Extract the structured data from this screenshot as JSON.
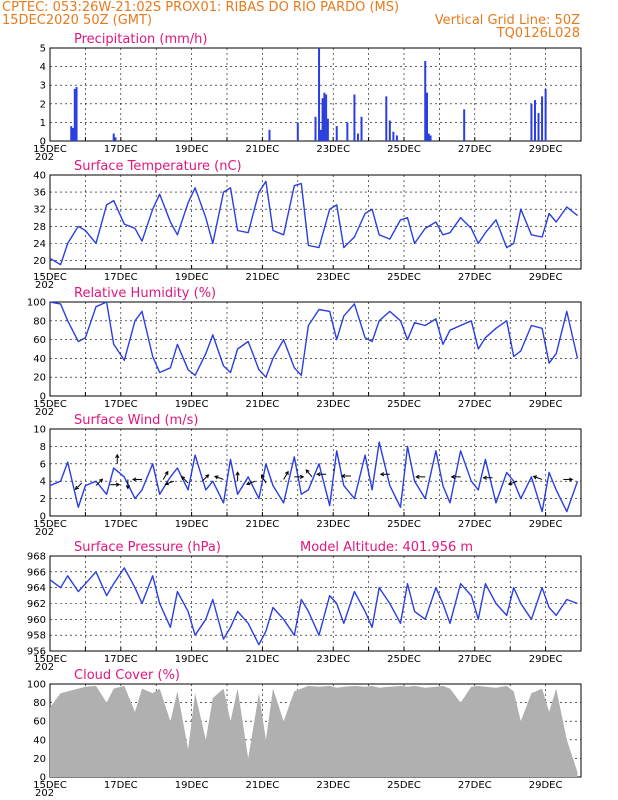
{
  "header": {
    "line1_left": "CPTEC:   053:26W-21:02S   PROX01: RIBAS DO RIO PARDO (MS)",
    "line2_left": "15DEC2020 50Z (GMT)",
    "line2_right": "Vertical Grid Line: 50Z",
    "line3_right": "TQ0126L028"
  },
  "colors": {
    "header": "#e87a1e",
    "title": "#e0177d",
    "series": "#2b3fe0",
    "cloud": "#b0b0b0"
  },
  "x_tick_labels": [
    "15DEC",
    "17DEC",
    "19DEC",
    "21DEC",
    "23DEC",
    "25DEC",
    "27DEC",
    "29DEC"
  ],
  "year_fragment": "202",
  "chart_data": [
    {
      "type": "bar",
      "title": "Precipitation (mm/h)",
      "xlabel": "",
      "ylabel": "",
      "x_range_days": [
        15,
        30
      ],
      "ylim": [
        0,
        5
      ],
      "yticks": [
        "0",
        "1",
        "2",
        "3",
        "4",
        "5"
      ],
      "grid": "vertical dashed + horizontal dashed",
      "x": [
        15.6,
        15.65,
        15.7,
        15.75,
        16.8,
        16.85,
        21.2,
        22.0,
        22.5,
        22.6,
        22.65,
        22.7,
        22.75,
        22.8,
        22.85,
        23.1,
        23.4,
        23.6,
        23.7,
        23.8,
        24.5,
        24.6,
        24.7,
        24.8,
        25.6,
        25.65,
        25.7,
        25.75,
        26.7,
        28.6,
        28.7,
        28.8,
        28.9,
        29.0
      ],
      "values": [
        0.8,
        0.7,
        2.8,
        2.9,
        0.4,
        0.2,
        0.6,
        1.0,
        1.3,
        5.0,
        0.6,
        2.3,
        2.6,
        2.5,
        1.2,
        0.8,
        1.0,
        2.5,
        0.4,
        1.3,
        2.4,
        1.1,
        0.5,
        0.3,
        4.3,
        2.6,
        0.4,
        0.3,
        1.7,
        2.0,
        2.2,
        1.5,
        2.4,
        2.8
      ]
    },
    {
      "type": "line",
      "title": "Surface Temperature (nC)",
      "ylim": [
        18,
        40
      ],
      "yticks": [
        "20",
        "24",
        "28",
        "32",
        "36",
        "40"
      ],
      "x_range_days": [
        15,
        30
      ],
      "series": [
        {
          "x": [
            15.0,
            15.3,
            15.5,
            15.8,
            16.0,
            16.3,
            16.6,
            16.8,
            17.1,
            17.4,
            17.6,
            17.9,
            18.1,
            18.4,
            18.6,
            18.9,
            19.1,
            19.4,
            19.6,
            19.9,
            20.1,
            20.3,
            20.6,
            20.9,
            21.1,
            21.3,
            21.6,
            21.9,
            22.1,
            22.3,
            22.6,
            22.9,
            23.1,
            23.3,
            23.6,
            23.9,
            24.1,
            24.3,
            24.6,
            24.9,
            25.1,
            25.3,
            25.6,
            25.9,
            26.1,
            26.3,
            26.6,
            26.9,
            27.1,
            27.3,
            27.6,
            27.9,
            28.1,
            28.3,
            28.6,
            28.9,
            29.1,
            29.3,
            29.6,
            29.9
          ],
          "values": [
            20.5,
            19.0,
            24.0,
            28.0,
            27.0,
            24.0,
            33.0,
            34.0,
            28.5,
            27.5,
            24.5,
            32.0,
            35.5,
            29.0,
            26.0,
            33.5,
            37.0,
            30.0,
            24.0,
            36.0,
            37.0,
            27.0,
            26.5,
            36.0,
            38.5,
            27.0,
            26.0,
            37.5,
            38.0,
            23.5,
            23.0,
            32.0,
            33.0,
            23.0,
            25.5,
            31.0,
            32.0,
            26.0,
            25.0,
            29.5,
            30.0,
            24.0,
            27.5,
            29.0,
            26.0,
            26.5,
            30.0,
            27.5,
            24.0,
            26.5,
            29.5,
            23.0,
            24.0,
            32.0,
            26.0,
            25.5,
            31.0,
            29.0,
            32.5,
            30.5
          ]
        }
      ]
    },
    {
      "type": "line",
      "title": "Relative Humidity (%)",
      "ylim": [
        0,
        100
      ],
      "yticks": [
        "0",
        "20",
        "40",
        "60",
        "80",
        "100"
      ],
      "x_range_days": [
        15,
        30
      ],
      "series": [
        {
          "x": [
            15.0,
            15.3,
            15.5,
            15.8,
            16.0,
            16.3,
            16.6,
            16.8,
            17.1,
            17.4,
            17.6,
            17.9,
            18.1,
            18.4,
            18.6,
            18.9,
            19.1,
            19.4,
            19.6,
            19.9,
            20.1,
            20.3,
            20.6,
            20.9,
            21.1,
            21.3,
            21.6,
            21.9,
            22.1,
            22.3,
            22.6,
            22.9,
            23.1,
            23.3,
            23.6,
            23.9,
            24.1,
            24.3,
            24.6,
            24.9,
            25.1,
            25.3,
            25.6,
            25.9,
            26.1,
            26.3,
            26.6,
            26.9,
            27.1,
            27.3,
            27.6,
            27.9,
            28.1,
            28.3,
            28.6,
            28.9,
            29.1,
            29.3,
            29.6,
            29.9
          ],
          "values": [
            100,
            98,
            80,
            58,
            62,
            95,
            100,
            55,
            38,
            80,
            90,
            42,
            25,
            30,
            55,
            28,
            22,
            45,
            65,
            32,
            25,
            50,
            58,
            28,
            20,
            40,
            60,
            30,
            22,
            75,
            92,
            90,
            60,
            85,
            98,
            62,
            58,
            80,
            90,
            80,
            60,
            78,
            75,
            82,
            55,
            70,
            75,
            80,
            50,
            62,
            72,
            80,
            42,
            48,
            75,
            72,
            35,
            45,
            90,
            40
          ]
        }
      ]
    },
    {
      "type": "line",
      "title": "Surface Wind (m/s)",
      "ylim": [
        0,
        10
      ],
      "yticks": [
        "0",
        "2",
        "4",
        "6",
        "8",
        "10"
      ],
      "x_range_days": [
        15,
        30
      ],
      "series": [
        {
          "x": [
            15.0,
            15.3,
            15.5,
            15.8,
            16.0,
            16.3,
            16.6,
            16.8,
            17.1,
            17.4,
            17.6,
            17.9,
            18.1,
            18.4,
            18.6,
            18.9,
            19.1,
            19.4,
            19.6,
            19.9,
            20.1,
            20.3,
            20.6,
            20.9,
            21.1,
            21.3,
            21.6,
            21.9,
            22.1,
            22.3,
            22.6,
            22.9,
            23.1,
            23.3,
            23.6,
            23.9,
            24.1,
            24.3,
            24.6,
            24.9,
            25.1,
            25.3,
            25.6,
            25.9,
            26.1,
            26.3,
            26.6,
            26.9,
            27.1,
            27.3,
            27.6,
            27.9,
            28.1,
            28.3,
            28.6,
            28.9,
            29.1,
            29.3,
            29.6,
            29.9
          ],
          "values": [
            3.5,
            4.0,
            6.2,
            1.0,
            3.5,
            4.0,
            2.5,
            5.5,
            4.5,
            2.0,
            3.0,
            6.0,
            2.5,
            4.5,
            5.5,
            3.0,
            7.0,
            3.0,
            4.0,
            1.5,
            6.5,
            2.5,
            4.5,
            2.0,
            6.0,
            3.5,
            1.5,
            6.8,
            2.5,
            3.0,
            6.0,
            1.2,
            7.5,
            3.5,
            2.0,
            7.0,
            3.0,
            8.5,
            3.5,
            1.0,
            8.0,
            4.0,
            2.0,
            7.5,
            3.5,
            1.5,
            7.5,
            4.0,
            3.0,
            6.5,
            1.5,
            5.0,
            4.0,
            2.0,
            4.5,
            0.5,
            5.0,
            3.0,
            0.5,
            4.0
          ]
        }
      ],
      "wind_arrows": [
        {
          "x": 15.9,
          "y": 3.8,
          "dir_deg": 225
        },
        {
          "x": 16.3,
          "y": 3.5,
          "dir_deg": 45
        },
        {
          "x": 16.7,
          "y": 3.6,
          "dir_deg": 0
        },
        {
          "x": 16.9,
          "y": 6.0,
          "dir_deg": 90
        },
        {
          "x": 17.2,
          "y": 4.2,
          "dir_deg": 270
        },
        {
          "x": 17.6,
          "y": 4.2,
          "dir_deg": 180
        },
        {
          "x": 18.2,
          "y": 4.2,
          "dir_deg": 60
        },
        {
          "x": 18.5,
          "y": 4.0,
          "dir_deg": 200
        },
        {
          "x": 18.9,
          "y": 3.8,
          "dir_deg": 135
        },
        {
          "x": 19.3,
          "y": 4.0,
          "dir_deg": 45
        },
        {
          "x": 19.9,
          "y": 4.2,
          "dir_deg": 160
        },
        {
          "x": 20.3,
          "y": 4.0,
          "dir_deg": 90
        },
        {
          "x": 20.8,
          "y": 4.0,
          "dir_deg": 200
        },
        {
          "x": 21.1,
          "y": 3.8,
          "dir_deg": 120
        },
        {
          "x": 21.6,
          "y": 4.2,
          "dir_deg": 60
        },
        {
          "x": 21.9,
          "y": 4.5,
          "dir_deg": 0
        },
        {
          "x": 22.4,
          "y": 4.5,
          "dir_deg": 130
        },
        {
          "x": 22.8,
          "y": 4.8,
          "dir_deg": 180
        },
        {
          "x": 23.5,
          "y": 4.6,
          "dir_deg": 180
        },
        {
          "x": 24.6,
          "y": 4.8,
          "dir_deg": 180
        },
        {
          "x": 25.6,
          "y": 4.5,
          "dir_deg": 180
        },
        {
          "x": 26.6,
          "y": 4.5,
          "dir_deg": 180
        },
        {
          "x": 27.5,
          "y": 4.4,
          "dir_deg": 180
        },
        {
          "x": 28.2,
          "y": 4.0,
          "dir_deg": 200
        },
        {
          "x": 28.9,
          "y": 4.2,
          "dir_deg": 160
        },
        {
          "x": 29.5,
          "y": 4.2,
          "dir_deg": 0
        }
      ]
    },
    {
      "type": "line",
      "title": "Surface Pressure (hPa)",
      "annotation": "Model Altitude: 401.956  m",
      "ylim": [
        956,
        968
      ],
      "yticks": [
        "956",
        "958",
        "960",
        "962",
        "964",
        "966",
        "968"
      ],
      "x_range_days": [
        15,
        30
      ],
      "series": [
        {
          "x": [
            15.0,
            15.3,
            15.5,
            15.8,
            16.0,
            16.3,
            16.6,
            16.8,
            17.1,
            17.4,
            17.6,
            17.9,
            18.1,
            18.4,
            18.6,
            18.9,
            19.1,
            19.4,
            19.6,
            19.9,
            20.1,
            20.3,
            20.6,
            20.9,
            21.1,
            21.3,
            21.6,
            21.9,
            22.1,
            22.3,
            22.6,
            22.9,
            23.1,
            23.3,
            23.6,
            23.9,
            24.1,
            24.3,
            24.6,
            24.9,
            25.1,
            25.3,
            25.6,
            25.9,
            26.1,
            26.3,
            26.6,
            26.9,
            27.1,
            27.3,
            27.6,
            27.9,
            28.1,
            28.3,
            28.6,
            28.9,
            29.1,
            29.3,
            29.6,
            29.9
          ],
          "values": [
            965.0,
            964.0,
            965.5,
            963.5,
            964.5,
            966.0,
            963.0,
            964.5,
            966.5,
            964.0,
            962.0,
            965.5,
            962.0,
            959.0,
            963.5,
            961.0,
            958.0,
            960.0,
            962.5,
            957.5,
            959.0,
            961.0,
            959.5,
            956.8,
            958.5,
            961.5,
            960.0,
            958.0,
            962.5,
            961.0,
            958.0,
            963.0,
            962.0,
            959.5,
            963.5,
            961.0,
            959.0,
            964.0,
            962.0,
            959.5,
            964.5,
            961.0,
            960.0,
            964.0,
            962.0,
            959.5,
            964.5,
            963.0,
            960.0,
            964.5,
            962.0,
            960.5,
            964.0,
            962.0,
            960.0,
            964.0,
            961.5,
            960.5,
            962.5,
            962.0
          ]
        }
      ]
    },
    {
      "type": "area",
      "title": "Cloud Cover (%)",
      "ylim": [
        0,
        100
      ],
      "yticks": [
        "0",
        "20",
        "40",
        "60",
        "80",
        "100"
      ],
      "x_range_days": [
        15,
        30
      ],
      "series": [
        {
          "x": [
            15.0,
            15.3,
            15.5,
            15.8,
            16.0,
            16.3,
            16.6,
            16.8,
            17.1,
            17.4,
            17.6,
            17.9,
            18.1,
            18.4,
            18.6,
            18.9,
            19.1,
            19.4,
            19.6,
            19.9,
            20.1,
            20.3,
            20.6,
            20.9,
            21.1,
            21.3,
            21.6,
            21.9,
            22.1,
            22.3,
            22.6,
            22.9,
            23.1,
            23.3,
            23.6,
            23.9,
            24.1,
            24.3,
            24.6,
            24.9,
            25.1,
            25.3,
            25.6,
            25.9,
            26.1,
            26.3,
            26.6,
            26.9,
            27.1,
            27.3,
            27.6,
            27.9,
            28.1,
            28.3,
            28.6,
            28.9,
            29.1,
            29.3,
            29.6,
            29.9
          ],
          "values": [
            75,
            90,
            92,
            95,
            97,
            98,
            80,
            95,
            98,
            70,
            95,
            90,
            95,
            60,
            92,
            30,
            90,
            40,
            85,
            95,
            60,
            95,
            20,
            90,
            40,
            95,
            60,
            92,
            95,
            98,
            97,
            98,
            96,
            97,
            98,
            97,
            98,
            96,
            97,
            98,
            97,
            98,
            96,
            97,
            98,
            95,
            80,
            97,
            98,
            97,
            96,
            98,
            92,
            60,
            90,
            95,
            70,
            95,
            40,
            5
          ]
        }
      ]
    }
  ]
}
